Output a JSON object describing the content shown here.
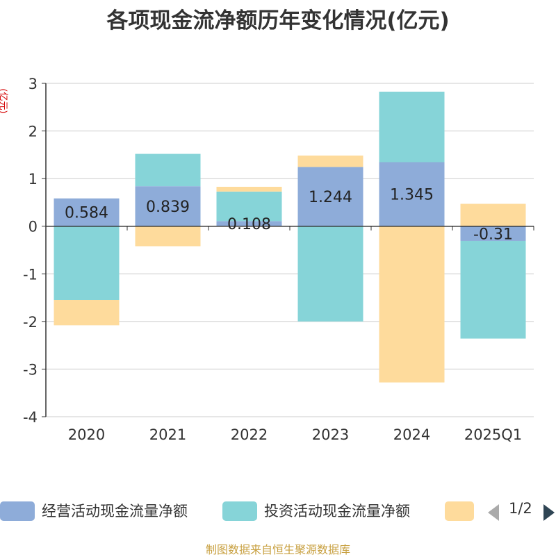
{
  "title": "各项现金流净额历年变化情况(亿元)",
  "source_note": "制图数据来自恒生聚源数据库",
  "legend": {
    "page_indicator": "1/2",
    "items": [
      {
        "label": "经营活动现金流量净额",
        "color": "#8eacd9"
      },
      {
        "label": "投资活动现金流量净额",
        "color": "#86d4d8"
      },
      {
        "label": "",
        "color": "#fedb9c"
      }
    ]
  },
  "chart_data": {
    "type": "bar",
    "stacked": true,
    "title": "各项现金流净额历年变化情况(亿元)",
    "ylabel": "(亿元)",
    "xlabel": "",
    "ylim": [
      -4,
      3
    ],
    "yticks": [
      "3",
      "2",
      "1",
      "0",
      "-1",
      "-2",
      "-3",
      "-4"
    ],
    "categories": [
      "2020",
      "2021",
      "2022",
      "2023",
      "2024",
      "2025Q1"
    ],
    "series": [
      {
        "name": "经营活动现金流量净额",
        "color": "#8eacd9",
        "values": [
          0.584,
          0.839,
          0.108,
          1.244,
          1.345,
          -0.31
        ],
        "labels": [
          "0.584",
          "0.839",
          "0.108",
          "1.244",
          "1.345",
          "-0.31"
        ]
      },
      {
        "name": "投资活动现金流量净额",
        "color": "#86d4d8",
        "values": [
          -1.55,
          0.68,
          0.62,
          -2.0,
          1.48,
          -2.05
        ]
      },
      {
        "name": "",
        "color": "#fedb9c",
        "values": [
          -0.53,
          -0.42,
          0.1,
          0.24,
          -3.28,
          0.47
        ]
      }
    ]
  }
}
